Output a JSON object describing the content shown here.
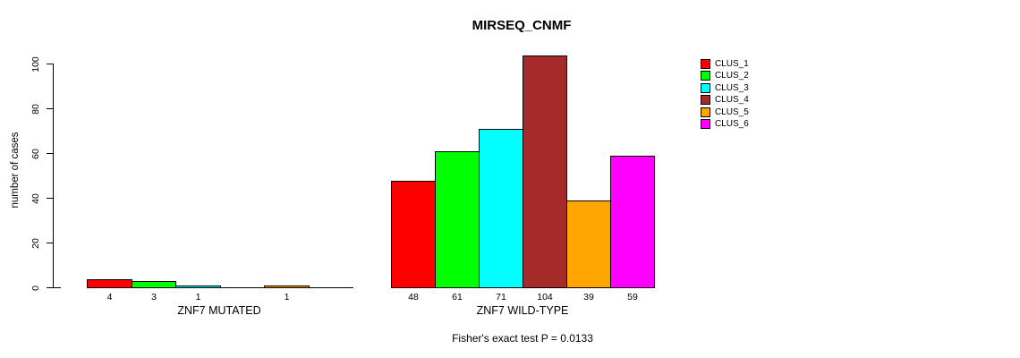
{
  "chart_data": {
    "type": "grouped_bar",
    "title": "MIRSEQ_CNMF",
    "ylabel": "number of cases",
    "ylim": [
      0,
      100
    ],
    "yticks": [
      0,
      20,
      40,
      60,
      80,
      100
    ],
    "grid": false,
    "legend_position": "right",
    "annotation": "Fisher's exact test P = 0.0133",
    "clusters": [
      {
        "name": "CLUS_1",
        "color": "#FF0000"
      },
      {
        "name": "CLUS_2",
        "color": "#00FF00"
      },
      {
        "name": "CLUS_3",
        "color": "#00FFFF"
      },
      {
        "name": "CLUS_4",
        "color": "#A52A2A"
      },
      {
        "name": "CLUS_5",
        "color": "#FFA500"
      },
      {
        "name": "CLUS_6",
        "color": "#FF00FF"
      }
    ],
    "groups": [
      {
        "label": "ZNF7 MUTATED",
        "values": [
          4,
          3,
          1,
          0,
          1,
          0
        ],
        "bar_labels": [
          "4",
          "3",
          "1",
          "",
          "1",
          ""
        ]
      },
      {
        "label": "ZNF7 WILD-TYPE",
        "values": [
          48,
          61,
          71,
          104,
          39,
          59
        ],
        "bar_labels": [
          "48",
          "61",
          "71",
          "104",
          "39",
          "59"
        ]
      }
    ]
  }
}
